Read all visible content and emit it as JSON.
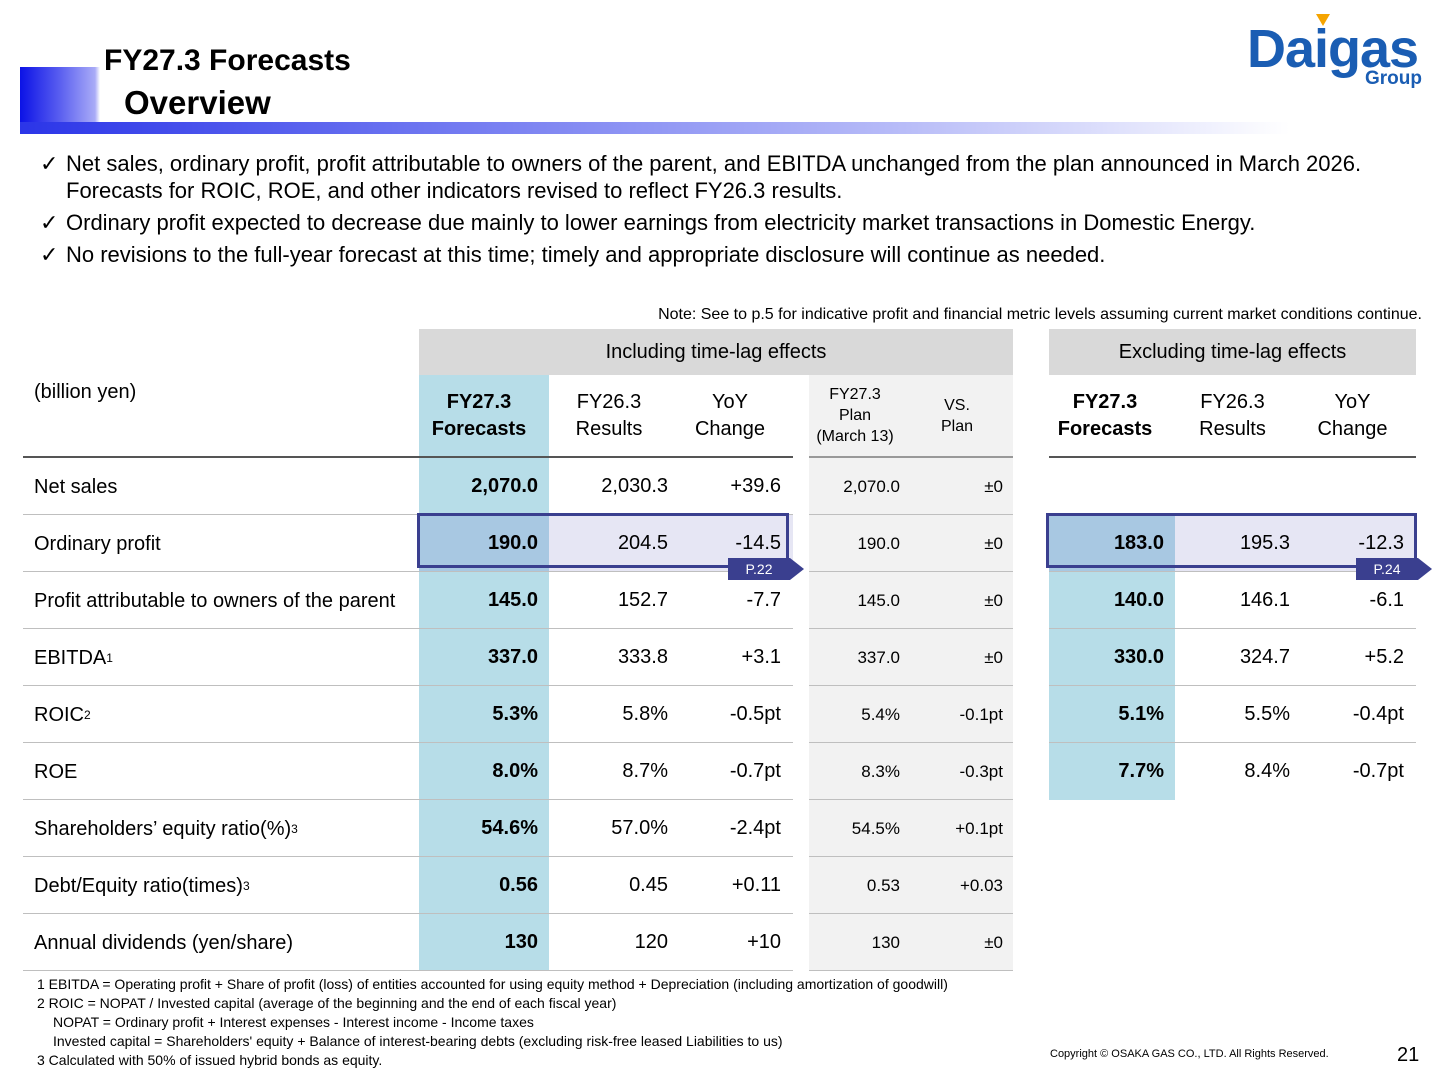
{
  "title": {
    "line1": "FY27.3 Forecasts",
    "line2": "Overview"
  },
  "logo": {
    "word": "Daigas",
    "group": "Group"
  },
  "bullets": [
    {
      "check": "✓",
      "text": "Net sales, ordinary profit, profit attributable to owners of the parent, and EBITDA unchanged from the plan announced in March 2026. Forecasts for ROIC, ROE, and other indicators revised to reflect FY26.3 results."
    },
    {
      "check": "✓",
      "text": "Ordinary profit expected to decrease due mainly to lower earnings from electricity market transactions in Domestic Energy."
    },
    {
      "check": "✓",
      "text": "No revisions to the full-year forecast at this time; timely and appropriate disclosure will continue as needed."
    }
  ],
  "note": "Note: See to p.5 for indicative profit and financial metric levels assuming current market conditions continue.",
  "table": {
    "unit": "(billion yen)",
    "group_incl": "Including time-lag effects",
    "group_excl": "Excluding time-lag effects",
    "headers": {
      "fc": [
        "FY27.3",
        "Forecasts"
      ],
      "res": [
        "FY26.3",
        "Results"
      ],
      "yoy": [
        "YoY",
        "Change"
      ],
      "plan": [
        "FY27.3",
        "Plan",
        "(March 13)"
      ],
      "vs": [
        "VS.",
        "Plan"
      ],
      "efc": [
        "FY27.3",
        "Forecasts"
      ],
      "eres": [
        "FY26.3",
        "Results"
      ],
      "eyoy": [
        "YoY",
        "Change"
      ]
    },
    "rows": [
      {
        "label": "Net sales",
        "sup": "",
        "fc": "2,070.0",
        "res": "2,030.3",
        "yoy": "+39.6",
        "plan": "2,070.0",
        "vs": "±0",
        "efc": "",
        "eres": "",
        "eyoy": ""
      },
      {
        "label": "Ordinary profit",
        "sup": "",
        "fc": "190.0",
        "res": "204.5",
        "yoy": "-14.5",
        "plan": "190.0",
        "vs": "±0",
        "efc": "183.0",
        "eres": "195.3",
        "eyoy": "-12.3"
      },
      {
        "label": "Profit attributable to owners of the parent",
        "sup": "",
        "fc": "145.0",
        "res": "152.7",
        "yoy": "-7.7",
        "plan": "145.0",
        "vs": "±0",
        "efc": "140.0",
        "eres": "146.1",
        "eyoy": "-6.1"
      },
      {
        "label": "EBITDA",
        "sup": "1",
        "fc": "337.0",
        "res": "333.8",
        "yoy": "+3.1",
        "plan": "337.0",
        "vs": "±0",
        "efc": "330.0",
        "eres": "324.7",
        "eyoy": "+5.2"
      },
      {
        "label": "ROIC",
        "sup": "2",
        "fc": "5.3%",
        "res": "5.8%",
        "yoy": "-0.5pt",
        "plan": "5.4%",
        "vs": "-0.1pt",
        "efc": "5.1%",
        "eres": "5.5%",
        "eyoy": "-0.4pt"
      },
      {
        "label": "ROE",
        "sup": "",
        "fc": "8.0%",
        "res": "8.7%",
        "yoy": "-0.7pt",
        "plan": "8.3%",
        "vs": "-0.3pt",
        "efc": "7.7%",
        "eres": "8.4%",
        "eyoy": "-0.7pt"
      },
      {
        "label": "Shareholders’ equity ratio(%)",
        "sup": "3",
        "fc": "54.6%",
        "res": "57.0%",
        "yoy": "-2.4pt",
        "plan": "54.5%",
        "vs": "+0.1pt",
        "efc": "",
        "eres": "",
        "eyoy": ""
      },
      {
        "label": "Debt/Equity ratio(times)",
        "sup": "3",
        "fc": "0.56",
        "res": "0.45",
        "yoy": "+0.11",
        "plan": "0.53",
        "vs": "+0.03",
        "efc": "",
        "eres": "",
        "eyoy": ""
      },
      {
        "label": "Annual dividends (yen/share)",
        "sup": "",
        "fc": "130",
        "res": "120",
        "yoy": "+10",
        "plan": "130",
        "vs": "±0",
        "efc": "",
        "eres": "",
        "eyoy": ""
      }
    ],
    "page_ref_incl": "P.22",
    "page_ref_excl": "P.24"
  },
  "footnotes": [
    "1 EBITDA = Operating profit + Share of profit (loss) of entities accounted for using equity method + Depreciation (including amortization of goodwill)",
    "2 ROIC = NOPAT / Invested capital (average of the beginning and the end of each fiscal year)",
    "NOPAT = Ordinary profit + Interest expenses - Interest income - Income taxes",
    "Invested capital = Shareholders' equity + Balance of interest-bearing debts (excluding risk-free leased Liabilities to us)",
    "3 Calculated with 50% of issued hybrid bonds as equity."
  ],
  "copyright": "Copyright © OSAKA GAS CO., LTD. All Rights Reserved.",
  "page_number": "21",
  "colors": {
    "accent_blue": "#1a5db3",
    "highlight_cell": "#b7dde8",
    "frame": "#3a3f8f"
  }
}
